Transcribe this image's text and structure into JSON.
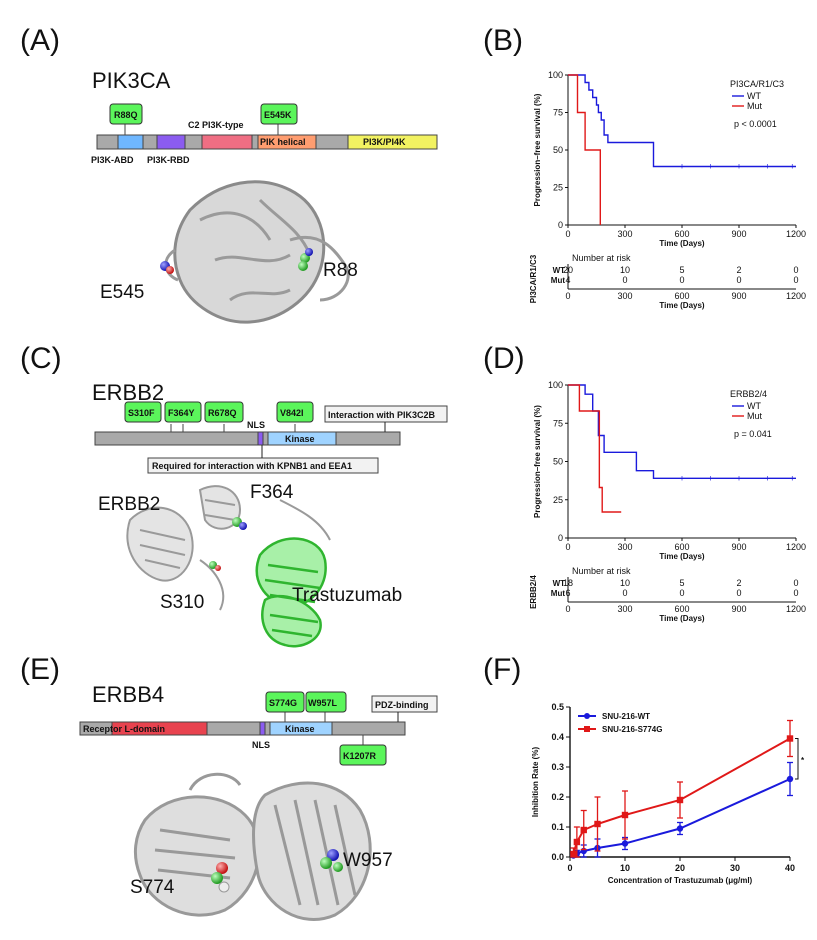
{
  "panels": {
    "A": {
      "letter": "(A)",
      "gene": "PIK3CA",
      "mutations": [
        "R88Q",
        "E545K"
      ],
      "domains": [
        "PI3K-ABD",
        "PI3K-RBD",
        "C2 PI3K-type",
        "PIK helical",
        "PI3K/PI4K"
      ],
      "residues": [
        "E545",
        "R88"
      ]
    },
    "B": {
      "letter": "(B)"
    },
    "C": {
      "letter": "(C)",
      "gene": "ERBB2",
      "mutations": [
        "S310F",
        "F364Y",
        "R678Q",
        "V842I"
      ],
      "domains": [
        "NLS",
        "Kinase"
      ],
      "notes": [
        "Interaction with PIK3C2B",
        "Required for interaction with KPNB1 and EEA1"
      ],
      "residues": [
        "ERBB2",
        "F364",
        "S310",
        "Trastuzumab"
      ]
    },
    "D": {
      "letter": "(D)"
    },
    "E": {
      "letter": "(E)",
      "gene": "ERBB4",
      "mutations": [
        "S774G",
        "W957L",
        "K1207R"
      ],
      "domains": [
        "Receptor L-domain",
        "NLS",
        "Kinase"
      ],
      "notes": [
        "PDZ-binding"
      ],
      "residues": [
        "S774",
        "W957"
      ]
    },
    "F": {
      "letter": "(F)"
    }
  },
  "chart_data": [
    {
      "panel": "B",
      "type": "line",
      "ylabel": "Progression–free survival (%)",
      "xlabel": "Time (Days)",
      "xlim": [
        0,
        1200
      ],
      "ylim": [
        0,
        100
      ],
      "xticks": [
        0,
        300,
        600,
        900,
        1200
      ],
      "yticks": [
        0,
        25,
        50,
        75,
        100
      ],
      "legend_title": "PI3CA/R1/C3",
      "legend_placement": "top-right",
      "p_text": "p < 0.0001",
      "series": [
        {
          "name": "WT",
          "color": "#1a1adc",
          "x": [
            0,
            50,
            90,
            110,
            130,
            150,
            160,
            175,
            190,
            210,
            300,
            450,
            1200
          ],
          "y": [
            100,
            100,
            95,
            90,
            85,
            80,
            75,
            70,
            60,
            55,
            55,
            39,
            39
          ]
        },
        {
          "name": "Mut",
          "color": "#e01818",
          "x": [
            0,
            40,
            50,
            90,
            170,
            170
          ],
          "y": [
            100,
            100,
            75,
            50,
            50,
            0
          ]
        }
      ],
      "risk_table": {
        "title": "Number at risk",
        "side_label": "PI3CA/R1/C3",
        "xlabel": "Time (Days)",
        "rows": [
          {
            "name": "WT",
            "values": [
              "20",
              "10",
              "5",
              "2",
              "0"
            ]
          },
          {
            "name": "Mut",
            "values": [
              "4",
              "0",
              "0",
              "0",
              "0"
            ]
          }
        ]
      }
    },
    {
      "panel": "D",
      "type": "line",
      "ylabel": "Progression–free survival (%)",
      "xlabel": "Time (Days)",
      "xlim": [
        0,
        1200
      ],
      "ylim": [
        0,
        100
      ],
      "xticks": [
        0,
        300,
        600,
        900,
        1200
      ],
      "yticks": [
        0,
        25,
        50,
        75,
        100
      ],
      "legend_title": "ERBB2/4",
      "legend_placement": "top-right",
      "p_text": "p = 0.041",
      "series": [
        {
          "name": "WT",
          "color": "#1a1adc",
          "x": [
            0,
            60,
            90,
            130,
            160,
            190,
            300,
            360,
            450,
            1200
          ],
          "y": [
            100,
            100,
            94,
            83,
            67,
            56,
            56,
            44,
            39,
            39
          ]
        },
        {
          "name": "Mut",
          "color": "#e01818",
          "x": [
            0,
            40,
            60,
            150,
            165,
            180,
            280
          ],
          "y": [
            100,
            100,
            83,
            83,
            33,
            17,
            17
          ]
        }
      ],
      "risk_table": {
        "title": "Number at risk",
        "side_label": "ERBB2/4",
        "xlabel": "Time (Days)",
        "rows": [
          {
            "name": "WT",
            "values": [
              "18",
              "10",
              "5",
              "2",
              "0"
            ]
          },
          {
            "name": "Mut",
            "values": [
              "6",
              "0",
              "0",
              "0",
              "0"
            ]
          }
        ]
      }
    },
    {
      "panel": "F",
      "type": "line",
      "ylabel": "Inhibition Rate (%)",
      "xlabel": "Concentration of Trastuzumab (μg/ml)",
      "xlim": [
        0,
        40
      ],
      "ylim": [
        0,
        0.5
      ],
      "xticks": [
        0,
        10,
        20,
        30,
        40
      ],
      "yticks": [
        0.0,
        0.1,
        0.2,
        0.3,
        0.4,
        0.5
      ],
      "legend_placement": "top-left",
      "annotation": "*",
      "series": [
        {
          "name": "SNU-216-WT",
          "color": "#1a1adc",
          "x": [
            0.625,
            1.25,
            2.5,
            5,
            10,
            20,
            40
          ],
          "y": [
            0.005,
            0.012,
            0.02,
            0.03,
            0.045,
            0.095,
            0.26
          ],
          "err": [
            0.005,
            0.01,
            0.02,
            0.03,
            0.02,
            0.02,
            0.055
          ]
        },
        {
          "name": "SNU-216-S774G",
          "color": "#e01818",
          "x": [
            0.625,
            1.25,
            2.5,
            5,
            10,
            20,
            40
          ],
          "y": [
            0.01,
            0.05,
            0.09,
            0.11,
            0.14,
            0.19,
            0.395
          ],
          "err": [
            0.02,
            0.05,
            0.065,
            0.09,
            0.08,
            0.06,
            0.06
          ]
        }
      ]
    }
  ]
}
